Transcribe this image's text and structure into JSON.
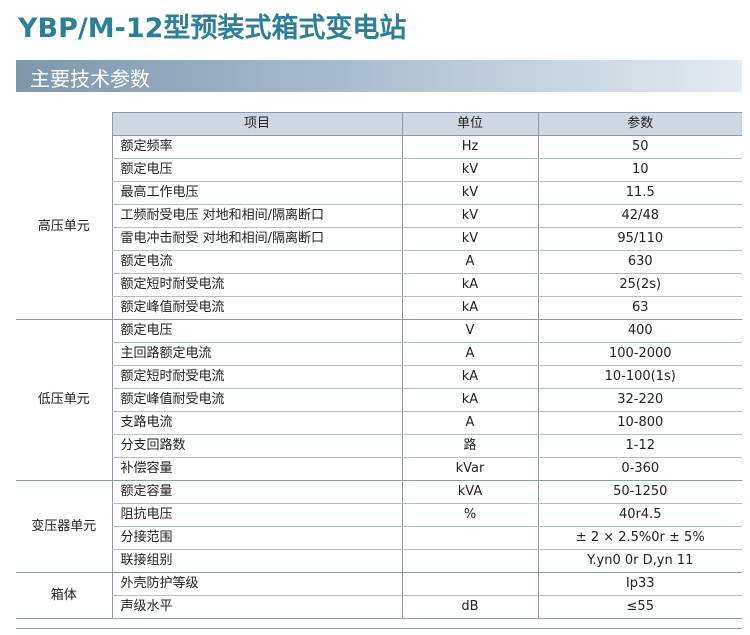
{
  "title": "YBP/M-12型预装式箱式变电站",
  "section_title": "主要技术参数",
  "table": {
    "headers": {
      "item": "项目",
      "unit": "单位",
      "param": "参数"
    },
    "groups": [
      {
        "name": "高压单元",
        "rows": [
          {
            "item": "额定频率",
            "unit": "Hz",
            "param": "50"
          },
          {
            "item": "额定电压",
            "unit": "kV",
            "param": "10"
          },
          {
            "item": "最高工作电压",
            "unit": "kV",
            "param": "11.5"
          },
          {
            "item": "工频耐受电压 对地和相间/隔离断口",
            "unit": "kV",
            "param": "42/48"
          },
          {
            "item": "雷电冲击耐受 对地和相间/隔离断口",
            "unit": "kV",
            "param": "95/110"
          },
          {
            "item": "额定电流",
            "unit": "A",
            "param": "630"
          },
          {
            "item": "额定短时耐受电流",
            "unit": "kA",
            "param": "25(2s)"
          },
          {
            "item": "额定峰值耐受电流",
            "unit": "kA",
            "param": "63"
          }
        ]
      },
      {
        "name": "低压单元",
        "rows": [
          {
            "item": "额定电压",
            "unit": "V",
            "param": "400"
          },
          {
            "item": "主回路额定电流",
            "unit": "A",
            "param": "100-2000"
          },
          {
            "item": "额定短时耐受电流",
            "unit": "kA",
            "param": "10-100(1s)"
          },
          {
            "item": "额定峰值耐受电流",
            "unit": "kA",
            "param": "32-220"
          },
          {
            "item": "支路电流",
            "unit": "A",
            "param": "10-800"
          },
          {
            "item": "分支回路数",
            "unit": "路",
            "param": "1-12"
          },
          {
            "item": "补偿容量",
            "unit": "kVar",
            "param": "0-360"
          }
        ]
      },
      {
        "name": "变压器单元",
        "rows": [
          {
            "item": "额定容量",
            "unit": "kVA",
            "param": "50-1250"
          },
          {
            "item": "阻抗电压",
            "unit": "%",
            "param": "40r4.5"
          },
          {
            "item": "分接范围",
            "unit": "",
            "param": "± 2 × 2.5%0r ± 5%"
          },
          {
            "item": "联接组别",
            "unit": "",
            "param": "Y.yn0 0r D,yn 11"
          }
        ]
      },
      {
        "name": "箱体",
        "rows": [
          {
            "item": "外壳防护等级",
            "unit": "",
            "param": "Ip33"
          },
          {
            "item": "声级水平",
            "unit": "dB",
            "param": "≤55"
          }
        ]
      }
    ]
  }
}
